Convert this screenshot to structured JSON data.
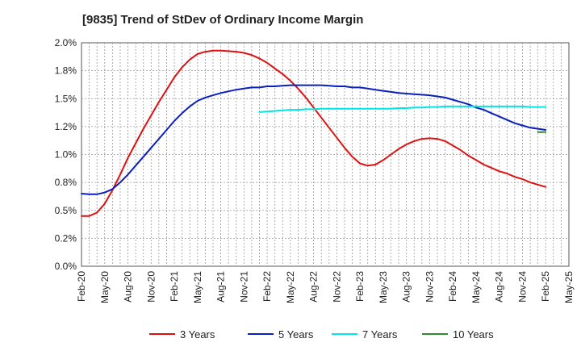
{
  "chart_data": {
    "type": "line",
    "title": "[9835]  Trend of StDev of Ordinary Income Margin",
    "xlabel": "",
    "ylabel": "",
    "x_ticks": [
      "Feb-20",
      "May-20",
      "Aug-20",
      "Nov-20",
      "Feb-21",
      "May-21",
      "Aug-21",
      "Nov-21",
      "Feb-22",
      "May-22",
      "Aug-22",
      "Nov-22",
      "Feb-23",
      "May-23",
      "Aug-23",
      "Nov-23",
      "Feb-24",
      "May-24",
      "Aug-24",
      "Nov-24",
      "Feb-25",
      "May-25"
    ],
    "y_ticks": [
      "0.0%",
      "0.2%",
      "0.5%",
      "0.8%",
      "1.0%",
      "1.2%",
      "1.5%",
      "1.8%",
      "2.0%"
    ],
    "ylim": [
      0,
      2.0
    ],
    "grid": true,
    "legend_position": "bottom",
    "series": [
      {
        "name": "3 Years",
        "color": "#dd1111",
        "points": [
          [
            "Feb-20",
            0.45
          ],
          [
            "Mar-20",
            0.45
          ],
          [
            "Apr-20",
            0.48
          ],
          [
            "May-20",
            0.56
          ],
          [
            "Jun-20",
            0.68
          ],
          [
            "Jul-20",
            0.82
          ],
          [
            "Aug-20",
            0.97
          ],
          [
            "Sep-20",
            1.1
          ],
          [
            "Oct-20",
            1.23
          ],
          [
            "Nov-20",
            1.35
          ],
          [
            "Dec-20",
            1.47
          ],
          [
            "Jan-21",
            1.58
          ],
          [
            "Feb-21",
            1.69
          ],
          [
            "Mar-21",
            1.78
          ],
          [
            "Apr-21",
            1.85
          ],
          [
            "May-21",
            1.9
          ],
          [
            "Jun-21",
            1.92
          ],
          [
            "Jul-21",
            1.93
          ],
          [
            "Aug-21",
            1.93
          ],
          [
            "Sep-21",
            1.925
          ],
          [
            "Oct-21",
            1.92
          ],
          [
            "Nov-21",
            1.91
          ],
          [
            "Dec-21",
            1.89
          ],
          [
            "Jan-22",
            1.86
          ],
          [
            "Feb-22",
            1.82
          ],
          [
            "Mar-22",
            1.77
          ],
          [
            "Apr-22",
            1.72
          ],
          [
            "May-22",
            1.66
          ],
          [
            "Jun-22",
            1.59
          ],
          [
            "Jul-22",
            1.51
          ],
          [
            "Aug-22",
            1.42
          ],
          [
            "Sep-22",
            1.33
          ],
          [
            "Oct-22",
            1.24
          ],
          [
            "Nov-22",
            1.15
          ],
          [
            "Dec-22",
            1.06
          ],
          [
            "Jan-23",
            0.98
          ],
          [
            "Feb-23",
            0.92
          ],
          [
            "Mar-23",
            0.9
          ],
          [
            "Apr-23",
            0.91
          ],
          [
            "May-23",
            0.95
          ],
          [
            "Jun-23",
            1.0
          ],
          [
            "Jul-23",
            1.05
          ],
          [
            "Aug-23",
            1.09
          ],
          [
            "Sep-23",
            1.12
          ],
          [
            "Oct-23",
            1.14
          ],
          [
            "Nov-23",
            1.145
          ],
          [
            "Dec-23",
            1.14
          ],
          [
            "Jan-24",
            1.12
          ],
          [
            "Feb-24",
            1.08
          ],
          [
            "Mar-24",
            1.04
          ],
          [
            "Apr-24",
            0.99
          ],
          [
            "May-24",
            0.95
          ],
          [
            "Jun-24",
            0.91
          ],
          [
            "Jul-24",
            0.88
          ],
          [
            "Aug-24",
            0.85
          ],
          [
            "Sep-24",
            0.83
          ],
          [
            "Oct-24",
            0.8
          ],
          [
            "Nov-24",
            0.78
          ],
          [
            "Dec-24",
            0.75
          ],
          [
            "Jan-25",
            0.73
          ],
          [
            "Feb-25",
            0.71
          ]
        ]
      },
      {
        "name": "5 Years",
        "color": "#0b1fbf",
        "points": [
          [
            "Feb-20",
            0.65
          ],
          [
            "Mar-20",
            0.645
          ],
          [
            "Apr-20",
            0.645
          ],
          [
            "May-20",
            0.66
          ],
          [
            "Jun-20",
            0.69
          ],
          [
            "Jul-20",
            0.75
          ],
          [
            "Aug-20",
            0.82
          ],
          [
            "Sep-20",
            0.9
          ],
          [
            "Oct-20",
            0.98
          ],
          [
            "Nov-20",
            1.06
          ],
          [
            "Dec-20",
            1.14
          ],
          [
            "Jan-21",
            1.22
          ],
          [
            "Feb-21",
            1.3
          ],
          [
            "Mar-21",
            1.37
          ],
          [
            "Apr-21",
            1.43
          ],
          [
            "May-21",
            1.48
          ],
          [
            "Jun-21",
            1.51
          ],
          [
            "Jul-21",
            1.53
          ],
          [
            "Aug-21",
            1.55
          ],
          [
            "Sep-21",
            1.565
          ],
          [
            "Oct-21",
            1.58
          ],
          [
            "Nov-21",
            1.59
          ],
          [
            "Dec-21",
            1.6
          ],
          [
            "Jan-22",
            1.6
          ],
          [
            "Feb-22",
            1.61
          ],
          [
            "Mar-22",
            1.61
          ],
          [
            "Apr-22",
            1.615
          ],
          [
            "May-22",
            1.62
          ],
          [
            "Jun-22",
            1.62
          ],
          [
            "Jul-22",
            1.62
          ],
          [
            "Aug-22",
            1.62
          ],
          [
            "Sep-22",
            1.62
          ],
          [
            "Oct-22",
            1.615
          ],
          [
            "Nov-22",
            1.61
          ],
          [
            "Dec-22",
            1.61
          ],
          [
            "Jan-23",
            1.6
          ],
          [
            "Feb-23",
            1.6
          ],
          [
            "Mar-23",
            1.59
          ],
          [
            "Apr-23",
            1.58
          ],
          [
            "May-23",
            1.57
          ],
          [
            "Jun-23",
            1.56
          ],
          [
            "Jul-23",
            1.55
          ],
          [
            "Aug-23",
            1.545
          ],
          [
            "Sep-23",
            1.54
          ],
          [
            "Oct-23",
            1.535
          ],
          [
            "Nov-23",
            1.53
          ],
          [
            "Dec-23",
            1.52
          ],
          [
            "Jan-24",
            1.51
          ],
          [
            "Feb-24",
            1.49
          ],
          [
            "Mar-24",
            1.47
          ],
          [
            "Apr-24",
            1.45
          ],
          [
            "May-24",
            1.42
          ],
          [
            "Jun-24",
            1.4
          ],
          [
            "Jul-24",
            1.37
          ],
          [
            "Aug-24",
            1.34
          ],
          [
            "Sep-24",
            1.31
          ],
          [
            "Oct-24",
            1.28
          ],
          [
            "Nov-24",
            1.26
          ],
          [
            "Dec-24",
            1.24
          ],
          [
            "Jan-25",
            1.23
          ],
          [
            "Feb-25",
            1.22
          ]
        ]
      },
      {
        "name": "7 Years",
        "color": "#00e5e5",
        "points": [
          [
            "Jan-22",
            1.38
          ],
          [
            "Feb-22",
            1.385
          ],
          [
            "Mar-22",
            1.39
          ],
          [
            "Apr-22",
            1.395
          ],
          [
            "May-22",
            1.4
          ],
          [
            "Jun-22",
            1.4
          ],
          [
            "Jul-22",
            1.405
          ],
          [
            "Aug-22",
            1.405
          ],
          [
            "Sep-22",
            1.41
          ],
          [
            "Oct-22",
            1.41
          ],
          [
            "Nov-22",
            1.41
          ],
          [
            "Dec-22",
            1.41
          ],
          [
            "Jan-23",
            1.41
          ],
          [
            "Feb-23",
            1.41
          ],
          [
            "Mar-23",
            1.41
          ],
          [
            "Apr-23",
            1.41
          ],
          [
            "May-23",
            1.41
          ],
          [
            "Jun-23",
            1.41
          ],
          [
            "Jul-23",
            1.415
          ],
          [
            "Aug-23",
            1.415
          ],
          [
            "Sep-23",
            1.42
          ],
          [
            "Oct-23",
            1.42
          ],
          [
            "Nov-23",
            1.425
          ],
          [
            "Dec-23",
            1.425
          ],
          [
            "Jan-24",
            1.43
          ],
          [
            "Feb-24",
            1.43
          ],
          [
            "Mar-24",
            1.43
          ],
          [
            "Apr-24",
            1.43
          ],
          [
            "May-24",
            1.43
          ],
          [
            "Jun-24",
            1.43
          ],
          [
            "Jul-24",
            1.43
          ],
          [
            "Aug-24",
            1.43
          ],
          [
            "Sep-24",
            1.43
          ],
          [
            "Oct-24",
            1.43
          ],
          [
            "Nov-24",
            1.43
          ],
          [
            "Dec-24",
            1.425
          ],
          [
            "Jan-25",
            1.425
          ],
          [
            "Feb-25",
            1.425
          ]
        ]
      },
      {
        "name": "10 Years",
        "color": "#2e8b2e",
        "points": [
          [
            "Jan-25",
            1.2
          ],
          [
            "Feb-25",
            1.2
          ]
        ]
      }
    ]
  }
}
